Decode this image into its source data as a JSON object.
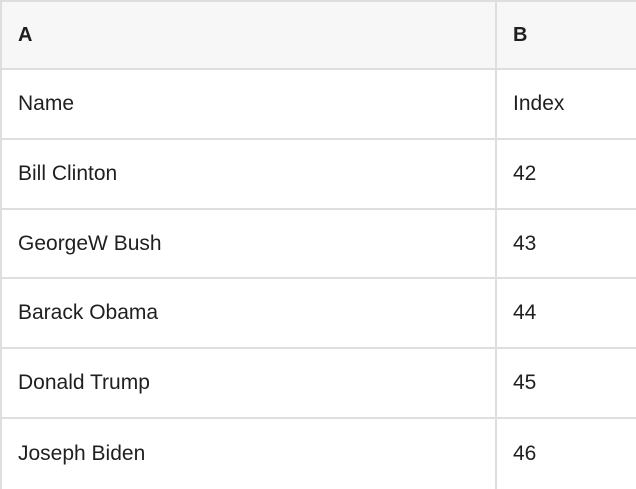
{
  "table": {
    "column_headers": [
      "A",
      "B"
    ],
    "rows": [
      [
        "Name",
        "Index"
      ],
      [
        "Bill Clinton",
        "42"
      ],
      [
        "GeorgeW Bush",
        "43"
      ],
      [
        "Barack Obama",
        "44"
      ],
      [
        "Donald Trump",
        "45"
      ],
      [
        "Joseph Biden",
        "46"
      ]
    ],
    "colors": {
      "header_background": "#f7f7f7",
      "grid_border": "#dedede",
      "text": "#1f1f1f"
    }
  }
}
